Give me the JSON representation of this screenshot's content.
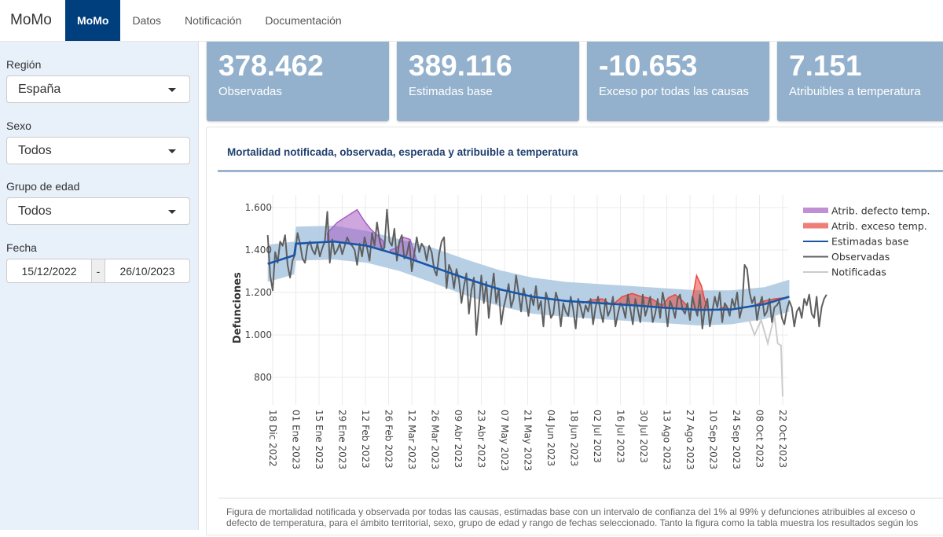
{
  "navbar": {
    "brand": "MoMo",
    "items": [
      {
        "label": "MoMo",
        "active": true
      },
      {
        "label": "Datos",
        "active": false
      },
      {
        "label": "Notificación",
        "active": false
      },
      {
        "label": "Documentación",
        "active": false
      }
    ]
  },
  "sidebar": {
    "region": {
      "label": "Región",
      "value": "España"
    },
    "sexo": {
      "label": "Sexo",
      "value": "Todos"
    },
    "edad": {
      "label": "Grupo de edad",
      "value": "Todos"
    },
    "fecha": {
      "label": "Fecha",
      "start": "15/12/2022",
      "separator": "-",
      "end": "26/10/2023"
    }
  },
  "value_boxes": [
    {
      "value": "378.462",
      "label": "Observadas"
    },
    {
      "value": "389.116",
      "label": "Estimadas base"
    },
    {
      "value": "-10.653",
      "label": "Exceso por todas las causas"
    },
    {
      "value": "7.151",
      "label": "Atribuibles a temperatura"
    }
  ],
  "panel": {
    "title": "Mortalidad notificada, observada, esperada y atribuible a temperatura",
    "caption": "Figura de mortalidad notificada y observada por todas las causas, estimadas base con un intervalo de confianza del 1% al 99% y defunciones atribuibles al exceso o defecto de temperatura, para el ámbito territorial, sexo, grupo de edad y rango de fechas seleccionado. Tanto la figura como la tabla muestra los resultados según los"
  },
  "colors": {
    "accent": "#003f7d",
    "value_box": "#93b1cc",
    "band": "#b3cce3",
    "estimadas": "#1a56a6",
    "observadas": "#5f5f5f",
    "notificadas": "#cccccc",
    "defecto": "#a65fc4",
    "exceso": "#e8473c"
  },
  "chart_data": {
    "type": "line",
    "title": "",
    "ylabel": "Defunciones",
    "xlabel": "",
    "ylim": [
      670,
      1660
    ],
    "yticks": [
      800,
      1000,
      1200,
      1400,
      1600
    ],
    "ytick_labels": [
      "800",
      "1.000",
      "1.200",
      "1.400",
      "1.600"
    ],
    "x_start": "2022-12-15",
    "x_end": "2023-10-26",
    "xtick_days": [
      3,
      17,
      31,
      45,
      59,
      73,
      87,
      101,
      115,
      129,
      143,
      157,
      171,
      185,
      199,
      213,
      227,
      241,
      255,
      269,
      283,
      297,
      311
    ],
    "xtick_labels": [
      "18 Dic 2022",
      "01 Ene 2023",
      "15 Ene 2023",
      "29 Ene 2023",
      "12 Feb 2023",
      "26 Feb 2023",
      "12 Mar 2023",
      "26 Mar 2023",
      "09 Abr 2023",
      "23 Abr 2023",
      "07 May 2023",
      "21 May 2023",
      "04 Jun 2023",
      "18 Jun 2023",
      "02 Jul 2023",
      "16 Jul 2023",
      "30 Jul 2023",
      "13 Ago 2023",
      "27 Ago 2023",
      "10 Sep 2023",
      "24 Sep 2023",
      "08 Oct 2023",
      "22 Oct 2023"
    ],
    "legend": [
      "Atrib. defecto temp.",
      "Atrib. exceso temp.",
      "Estimadas base",
      "Observadas",
      "Notificadas"
    ],
    "legend_position": "top-right",
    "estimadas_base": {
      "days": [
        0,
        16,
        17,
        40,
        60,
        80,
        100,
        120,
        140,
        160,
        180,
        200,
        220,
        240,
        260,
        280,
        300,
        315
      ],
      "values": [
        1335,
        1375,
        1430,
        1440,
        1420,
        1375,
        1320,
        1265,
        1215,
        1180,
        1160,
        1150,
        1140,
        1128,
        1118,
        1120,
        1145,
        1180
      ]
    },
    "band_upper": {
      "days": [
        0,
        16,
        17,
        40,
        60,
        80,
        100,
        120,
        140,
        160,
        180,
        200,
        220,
        240,
        260,
        280,
        300,
        315
      ],
      "values": [
        1425,
        1440,
        1510,
        1515,
        1490,
        1450,
        1410,
        1355,
        1305,
        1270,
        1250,
        1240,
        1230,
        1220,
        1210,
        1210,
        1225,
        1260
      ]
    },
    "band_lower": {
      "days": [
        0,
        16,
        17,
        40,
        60,
        80,
        100,
        120,
        140,
        160,
        180,
        200,
        220,
        240,
        260,
        280,
        300,
        315
      ],
      "values": [
        1250,
        1285,
        1350,
        1355,
        1340,
        1300,
        1245,
        1185,
        1135,
        1100,
        1085,
        1075,
        1065,
        1055,
        1045,
        1050,
        1075,
        1110
      ]
    },
    "observadas": {
      "days_start": 0,
      "step_days": 1.5,
      "values": [
        1470,
        1280,
        1210,
        1390,
        1340,
        1440,
        1420,
        1470,
        1330,
        1270,
        1350,
        1380,
        1480,
        1430,
        1360,
        1340,
        1420,
        1440,
        1400,
        1380,
        1430,
        1370,
        1410,
        1440,
        1580,
        1340,
        1450,
        1380,
        1400,
        1430,
        1380,
        1420,
        1460,
        1430,
        1420,
        1400,
        1330,
        1430,
        1370,
        1460,
        1410,
        1350,
        1480,
        1420,
        1530,
        1450,
        1400,
        1410,
        1590,
        1440,
        1420,
        1500,
        1350,
        1440,
        1470,
        1360,
        1380,
        1440,
        1300,
        1380,
        1460,
        1390,
        1430,
        1410,
        1350,
        1420,
        1390,
        1310,
        1280,
        1380,
        1440,
        1460,
        1220,
        1330,
        1300,
        1220,
        1310,
        1260,
        1150,
        1230,
        1290,
        1100,
        1210,
        1270,
        1000,
        1130,
        1280,
        1150,
        1250,
        1080,
        1200,
        1290,
        1150,
        1220,
        1050,
        1130,
        1180,
        1240,
        1130,
        1170,
        1280,
        1200,
        1110,
        1220,
        1170,
        1090,
        1190,
        1140,
        1230,
        1120,
        1160,
        1040,
        1200,
        1160,
        1080,
        1100,
        1200,
        1160,
        1040,
        1150,
        1110,
        1090,
        1180,
        1120,
        1030,
        1170,
        1130,
        1080,
        1140,
        1110,
        1170,
        1050,
        1130,
        1180,
        1110,
        1060,
        1170,
        1090,
        1120,
        1180,
        1040,
        1100,
        1150,
        1130,
        1080,
        1190,
        1120,
        1050,
        1170,
        1120,
        1060,
        1190,
        1090,
        1130,
        1180,
        1060,
        1100,
        1170,
        1080,
        1200,
        1140,
        1040,
        1160,
        1130,
        1080,
        1170,
        1190,
        1120,
        1100,
        1150,
        1070,
        1180,
        1130,
        1090,
        1190,
        1030,
        1130,
        1170,
        1040,
        1110,
        1180,
        1130,
        1200,
        1060,
        1150,
        1130,
        1090,
        1170,
        1130,
        1200,
        1080,
        1130,
        1330,
        1310,
        1200,
        1150,
        1180,
        1070,
        1140,
        1180,
        1090,
        1110,
        1170,
        1060,
        1130,
        1140,
        1160,
        1080,
        1050,
        1120,
        1160,
        1130,
        1040,
        1110,
        1130,
        1080,
        1170,
        1140,
        1190,
        1100,
        1080,
        1180,
        1040,
        1130,
        1170,
        1190
      ],
      "note": "observed weekly-ish noisy series, approximate"
    },
    "notificadas": {
      "days": [
        282,
        288,
        294,
        298,
        302,
        306,
        308,
        310,
        311
      ],
      "values": [
        1080,
        1130,
        1000,
        1070,
        960,
        1090,
        960,
        950,
        710
      ]
    },
    "defecto_areas": [
      {
        "days": [
          36,
          42,
          48,
          54,
          58,
          62,
          66,
          70
        ],
        "values": [
          1480,
          1530,
          1560,
          1590,
          1540,
          1500,
          1470,
          1440
        ]
      },
      {
        "days": [
          74,
          78,
          82,
          86,
          90
        ],
        "values": [
          1400,
          1410,
          1460,
          1450,
          1350
        ]
      }
    ],
    "exceso_areas": [
      {
        "days": [
          190,
          196,
          202,
          206
        ],
        "values": [
          1150,
          1165,
          1170,
          1150
        ]
      },
      {
        "days": [
          208,
          214,
          220,
          226,
          232,
          238
        ],
        "values": [
          1140,
          1180,
          1195,
          1180,
          1170,
          1140
        ]
      },
      {
        "days": [
          238,
          242,
          246,
          250,
          254
        ],
        "values": [
          1135,
          1175,
          1190,
          1165,
          1130
        ]
      },
      {
        "days": [
          256,
          259,
          262,
          264,
          266,
          268
        ],
        "values": [
          1150,
          1280,
          1230,
          1160,
          1120,
          1115
        ]
      },
      {
        "days": [
          272,
          276,
          280
        ],
        "values": [
          1120,
          1132,
          1118
        ]
      },
      {
        "days": [
          294,
          300,
          306,
          312
        ],
        "values": [
          1140,
          1160,
          1170,
          1175
        ]
      }
    ]
  }
}
